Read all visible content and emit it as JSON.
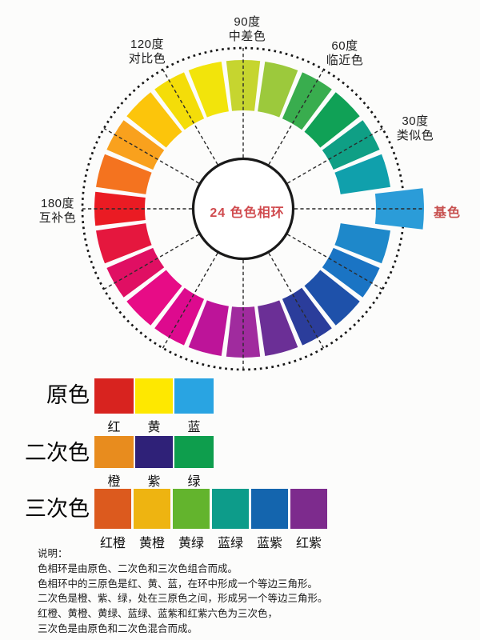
{
  "wheel": {
    "center_label": "24 色色相环",
    "center_label_color": "#d04a4e",
    "base_label": "基色",
    "base_label_color": "#c7504f",
    "labels": {
      "deg90": {
        "line1": "90度",
        "line2": "中差色"
      },
      "deg120": {
        "line1": "120度",
        "line2": "对比色"
      },
      "deg60": {
        "line1": "60度",
        "line2": "临近色"
      },
      "deg30": {
        "line1": "30度",
        "line2": "类似色"
      },
      "deg180": {
        "line1": "180度",
        "line2": "互补色"
      }
    },
    "guide_angles": [
      0,
      30,
      60,
      90,
      120,
      150,
      180,
      210,
      240,
      270,
      300,
      330
    ],
    "segments": [
      {
        "angle": 0,
        "color": "#2b9cd8",
        "base": true
      },
      {
        "angle": 15,
        "color": "#10a0ac"
      },
      {
        "angle": 30,
        "color": "#0f9f85"
      },
      {
        "angle": 45,
        "color": "#10a156"
      },
      {
        "angle": 60,
        "color": "#39ad4e"
      },
      {
        "angle": 75,
        "color": "#9cc93c"
      },
      {
        "angle": 90,
        "color": "#c6d52f"
      },
      {
        "angle": 105,
        "color": "#f2e40b"
      },
      {
        "angle": 120,
        "color": "#f4dd09"
      },
      {
        "angle": 135,
        "color": "#fcc50b"
      },
      {
        "angle": 150,
        "color": "#f9a11d"
      },
      {
        "angle": 165,
        "color": "#f4731f"
      },
      {
        "angle": 180,
        "color": "#ea1b23"
      },
      {
        "angle": 195,
        "color": "#e5173e"
      },
      {
        "angle": 210,
        "color": "#e00f63"
      },
      {
        "angle": 225,
        "color": "#e70c86"
      },
      {
        "angle": 240,
        "color": "#dd0a8e"
      },
      {
        "angle": 255,
        "color": "#bd1499"
      },
      {
        "angle": 270,
        "color": "#a02b9e"
      },
      {
        "angle": 285,
        "color": "#6b2f96"
      },
      {
        "angle": 300,
        "color": "#2b3d9b"
      },
      {
        "angle": 315,
        "color": "#1e51aa"
      },
      {
        "angle": 330,
        "color": "#1a74c4"
      },
      {
        "angle": 345,
        "color": "#1e88ca"
      }
    ]
  },
  "legend": {
    "rows": [
      {
        "title": "原色",
        "swatches": [
          {
            "label": "红",
            "color": "#d8231f"
          },
          {
            "label": "黄",
            "color": "#fee800"
          },
          {
            "label": "蓝",
            "color": "#29a4e2"
          }
        ]
      },
      {
        "title": "二次色",
        "swatches": [
          {
            "label": "橙",
            "color": "#e88c1e"
          },
          {
            "label": "紫",
            "color": "#2f2178"
          },
          {
            "label": "绿",
            "color": "#0e9e4d"
          }
        ]
      },
      {
        "title": "三次色",
        "swatches": [
          {
            "label": "红橙",
            "color": "#dc5a1e"
          },
          {
            "label": "黄橙",
            "color": "#eeb411"
          },
          {
            "label": "黄绿",
            "color": "#63b42d"
          },
          {
            "label": "蓝绿",
            "color": "#0d9c8a"
          },
          {
            "label": "蓝紫",
            "color": "#1465ae"
          },
          {
            "label": "红紫",
            "color": "#7d2b8d"
          }
        ]
      }
    ]
  },
  "notes": {
    "title": "说明：",
    "lines": [
      "色相环是由原色、二次色和三次色组合而成。",
      "色相环中的三原色是红、黄、蓝，在环中形成一个等边三角形。",
      "二次色是橙、紫、绿，处在三原色之间，形成另一个等边三角形。",
      "红橙、黄橙、黄绿、蓝绿、蓝紫和红紫六色为三次色，",
      "三次色是由原色和二次色混合而成。"
    ]
  }
}
